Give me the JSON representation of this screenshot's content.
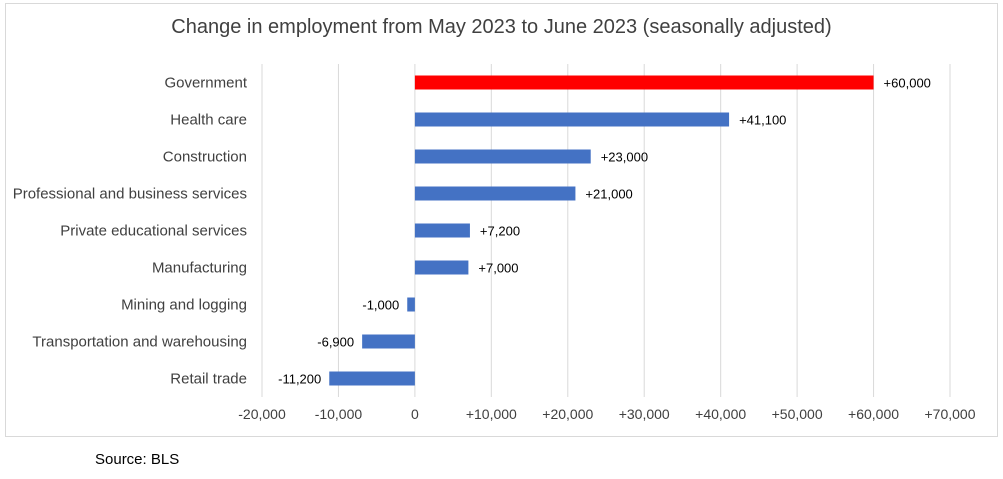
{
  "chart_data": {
    "type": "bar",
    "orientation": "horizontal",
    "title": "Change in employment from May 2023 to June 2023 (seasonally adjusted)",
    "categories": [
      "Government",
      "Health care",
      "Construction",
      "Professional and business services",
      "Private educational services",
      "Manufacturing",
      "Mining and logging",
      "Transportation and warehousing",
      "Retail trade"
    ],
    "values": [
      60000,
      41100,
      23000,
      21000,
      7200,
      7000,
      -1000,
      -6900,
      -11200
    ],
    "data_labels": [
      "+60,000",
      "+41,100",
      "+23,000",
      "+21,000",
      "+7,200",
      "+7,000",
      "-1,000",
      "-6,900",
      "-11,200"
    ],
    "bar_colors": [
      "#ff0000",
      "#4472c4",
      "#4472c4",
      "#4472c4",
      "#4472c4",
      "#4472c4",
      "#4472c4",
      "#4472c4",
      "#4472c4"
    ],
    "xlim": [
      -20000,
      70000
    ],
    "x_ticks": [
      -20000,
      -10000,
      0,
      10000,
      20000,
      30000,
      40000,
      50000,
      60000,
      70000
    ],
    "x_tick_labels": [
      "-20,000",
      "-10,000",
      "0",
      "+10,000",
      "+20,000",
      "+30,000",
      "+40,000",
      "+50,000",
      "+60,000",
      "+70,000"
    ],
    "grid": "vertical gridlines on",
    "legend": "none"
  },
  "source": "Source: BLS"
}
